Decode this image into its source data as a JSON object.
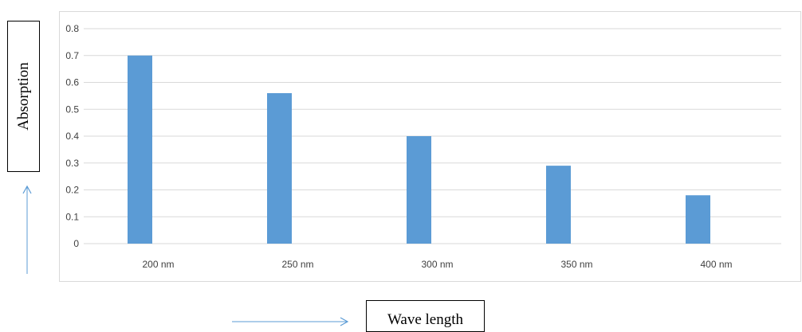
{
  "chart_data": {
    "type": "bar",
    "categories": [
      "200 nm",
      "250 nm",
      "300 nm",
      "350 nm",
      "400 nm"
    ],
    "values": [
      0.7,
      0.56,
      0.4,
      0.29,
      0.18
    ],
    "title": "",
    "xlabel": "Wave length",
    "ylabel": "Absorption",
    "ylim": [
      0,
      0.8
    ],
    "yticks": [
      "0",
      "0.1",
      "0.2",
      "0.3",
      "0.4",
      "0.5",
      "0.6",
      "0.7",
      "0.8"
    ],
    "grid": true,
    "legend": "none",
    "bar_color": "#5b9bd5",
    "arrow_color": "#5b9bd5",
    "gridline_color": "#d9d9d9"
  }
}
